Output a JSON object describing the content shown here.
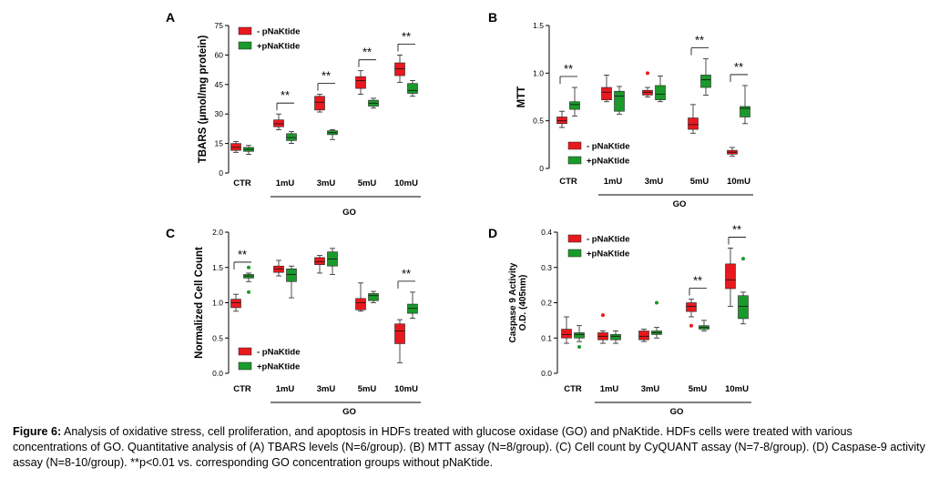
{
  "colors": {
    "minus": "#e8191e",
    "plus": "#1a9a2a",
    "outlier_minus": "#e8191e",
    "outlier_plus": "#1a9a2a"
  },
  "legend": {
    "minus": "- pNaKtide",
    "plus": "+pNaKtide"
  },
  "significance_label": "**",
  "caption": {
    "label": "Figure 6:",
    "text": "Analysis of oxidative stress, cell proliferation, and apoptosis in HDFs treated with glucose oxidase (GO) and pNaKtide. HDFs cells were treated with various concentrations of GO. Quantitative analysis of (A) TBARS levels (N=6/group). (B) MTT assay (N=8/group). (C) Cell count by CyQUANT assay (N=7-8/group). (D) Caspase-9 activity assay (N=8-10/group). **p<0.01 vs. corresponding GO concentration groups without pNaKtide."
  },
  "chart_data": [
    {
      "panel": "A",
      "type": "box",
      "ylabel": [
        "TBARS (μmol/mg protein)"
      ],
      "ylim": [
        0,
        75
      ],
      "yticks": [
        0,
        15,
        30,
        45,
        60,
        75
      ],
      "categories": [
        "CTR",
        "1mU",
        "3mU",
        "5mU",
        "10mU"
      ],
      "group_label": "GO",
      "legend_position": "top-left",
      "significance": [
        1,
        2,
        3,
        4
      ],
      "series": [
        {
          "name": "- pNaKtide",
          "boxes": [
            [
              10.5,
              11.5,
              13,
              15,
              16
            ],
            [
              22,
              23.5,
              25,
              27,
              30
            ],
            [
              31,
              32,
              36,
              39,
              40
            ],
            [
              40,
              43,
              47,
              49,
              52
            ],
            [
              46,
              49.5,
              53,
              56,
              60
            ]
          ],
          "outliers": [
            [],
            [],
            [],
            [],
            []
          ]
        },
        {
          "name": "+pNaKtide",
          "boxes": [
            [
              9.5,
              11,
              12,
              13,
              14
            ],
            [
              15,
              16.5,
              18,
              20,
              21
            ],
            [
              17,
              19.5,
              20.5,
              21.5,
              22
            ],
            [
              33,
              34,
              35.5,
              37,
              38
            ],
            [
              39,
              40.5,
              42,
              45.5,
              47
            ]
          ],
          "outliers": [
            [],
            [],
            [],
            [],
            []
          ]
        }
      ]
    },
    {
      "panel": "B",
      "type": "box",
      "ylabel": [
        "MTT"
      ],
      "ylim": [
        0,
        1.5
      ],
      "yticks": [
        "0",
        "0.5",
        "1.0",
        "1.5"
      ],
      "categories": [
        "CTR",
        "1mU",
        "3mU",
        "5mU",
        "10mU"
      ],
      "group_label": "GO",
      "legend_position": "bottom-left",
      "significance": [
        0,
        3,
        4
      ],
      "series": [
        {
          "name": "- pNaKtide",
          "boxes": [
            [
              0.43,
              0.47,
              0.5,
              0.54,
              0.6
            ],
            [
              0.7,
              0.72,
              0.8,
              0.85,
              0.98
            ],
            [
              0.75,
              0.77,
              0.8,
              0.82,
              0.85
            ],
            [
              0.37,
              0.41,
              0.46,
              0.53,
              0.67
            ],
            [
              0.13,
              0.15,
              0.17,
              0.19,
              0.22
            ]
          ],
          "outliers": [
            [],
            [],
            [
              1.0
            ],
            [],
            []
          ]
        },
        {
          "name": "+pNaKtide",
          "boxes": [
            [
              0.55,
              0.62,
              0.67,
              0.7,
              0.85
            ],
            [
              0.57,
              0.6,
              0.76,
              0.81,
              0.86
            ],
            [
              0.7,
              0.72,
              0.78,
              0.87,
              0.97
            ],
            [
              0.77,
              0.85,
              0.93,
              0.98,
              1.15
            ],
            [
              0.47,
              0.54,
              0.63,
              0.65,
              0.87
            ]
          ],
          "outliers": [
            [],
            [],
            [],
            [],
            []
          ]
        }
      ]
    },
    {
      "panel": "C",
      "type": "box",
      "ylabel": [
        "Normalized Cell Count"
      ],
      "ylim": [
        0,
        2.0
      ],
      "yticks": [
        "0.0",
        "0.5",
        "1.0",
        "1.5",
        "2.0"
      ],
      "categories": [
        "CTR",
        "1mU",
        "3mU",
        "5mU",
        "10mU"
      ],
      "group_label": "GO",
      "legend_position": "bottom-left",
      "significance": [
        0,
        4
      ],
      "series": [
        {
          "name": "- pNaKtide",
          "boxes": [
            [
              0.88,
              0.93,
              1.0,
              1.05,
              1.12
            ],
            [
              1.38,
              1.43,
              1.48,
              1.52,
              1.6
            ],
            [
              1.42,
              1.54,
              1.58,
              1.64,
              1.67
            ],
            [
              0.88,
              0.9,
              1.0,
              1.06,
              1.28
            ],
            [
              0.15,
              0.42,
              0.6,
              0.7,
              0.76
            ]
          ],
          "outliers": [
            [],
            [],
            [],
            [],
            []
          ]
        },
        {
          "name": "+pNaKtide",
          "boxes": [
            [
              1.3,
              1.35,
              1.38,
              1.4,
              1.42
            ],
            [
              1.07,
              1.3,
              1.4,
              1.48,
              1.52
            ],
            [
              1.4,
              1.52,
              1.62,
              1.72,
              1.77
            ],
            [
              1.0,
              1.03,
              1.1,
              1.13,
              1.16
            ],
            [
              0.78,
              0.85,
              0.92,
              0.98,
              1.15
            ]
          ],
          "outliers": [
            [
              1.5,
              1.15
            ],
            [],
            [],
            [],
            []
          ]
        }
      ]
    },
    {
      "panel": "D",
      "type": "box",
      "ylabel": [
        "Caspase 9 Activity",
        "O.D. (405nm)"
      ],
      "ylim": [
        0,
        0.4
      ],
      "yticks": [
        "0.0",
        "0.1",
        "0.2",
        "0.3",
        "0.4"
      ],
      "categories": [
        "CTR",
        "1mU",
        "3mU",
        "5mU",
        "10mU"
      ],
      "group_label": "GO",
      "legend_position": "top-left",
      "significance": [
        3,
        4
      ],
      "series": [
        {
          "name": "- pNaKtide",
          "boxes": [
            [
              0.085,
              0.1,
              0.11,
              0.125,
              0.16
            ],
            [
              0.085,
              0.095,
              0.105,
              0.115,
              0.12
            ],
            [
              0.09,
              0.095,
              0.105,
              0.12,
              0.125
            ],
            [
              0.16,
              0.175,
              0.19,
              0.2,
              0.21
            ],
            [
              0.19,
              0.24,
              0.265,
              0.31,
              0.355
            ]
          ],
          "outliers": [
            [],
            [
              0.165
            ],
            [],
            [
              0.135
            ],
            []
          ]
        },
        {
          "name": "+pNaKtide",
          "boxes": [
            [
              0.09,
              0.1,
              0.11,
              0.115,
              0.135
            ],
            [
              0.085,
              0.095,
              0.105,
              0.11,
              0.12
            ],
            [
              0.1,
              0.11,
              0.115,
              0.12,
              0.13
            ],
            [
              0.12,
              0.125,
              0.13,
              0.135,
              0.15
            ],
            [
              0.14,
              0.155,
              0.19,
              0.22,
              0.23
            ]
          ],
          "outliers": [
            [
              0.075
            ],
            [],
            [
              0.2
            ],
            [],
            [
              0.325
            ]
          ]
        }
      ]
    }
  ]
}
